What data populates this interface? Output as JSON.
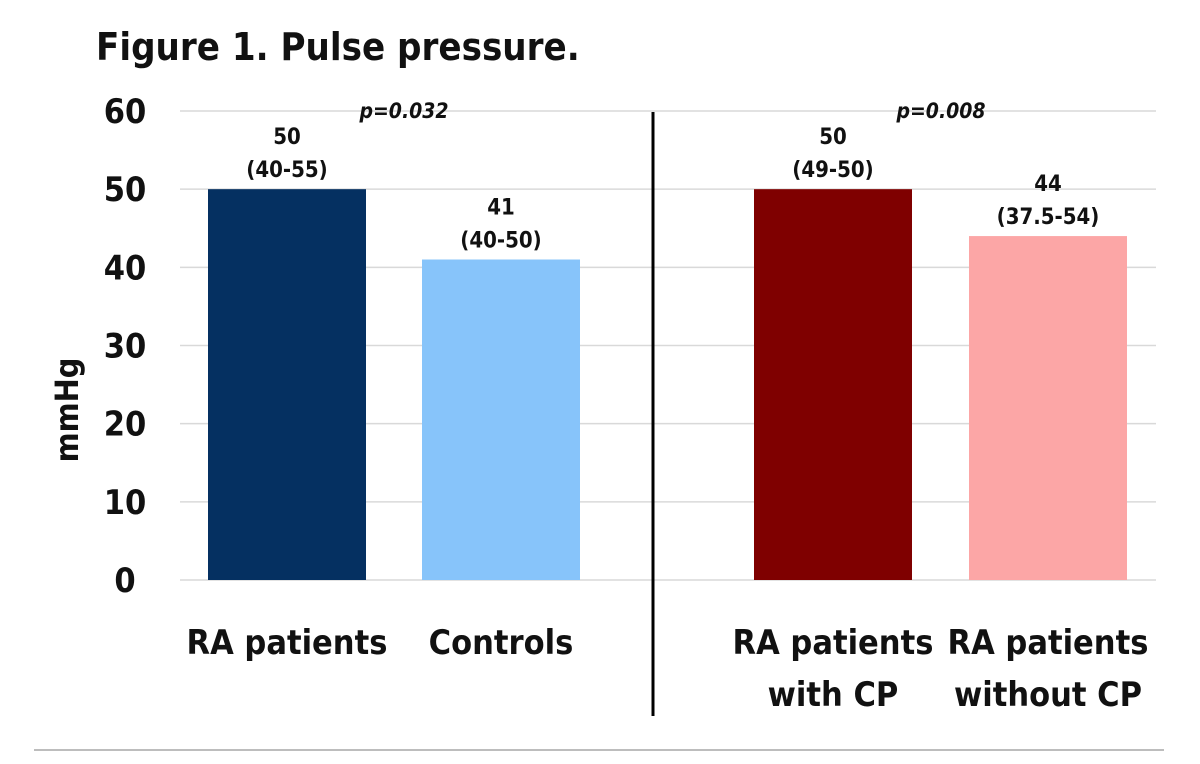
{
  "chart_data": {
    "type": "bar",
    "title": "Figure 1. Pulse pressure.",
    "ylabel": "mmHg",
    "ylim": [
      0,
      60
    ],
    "yticks": [
      0,
      10,
      20,
      30,
      40,
      50,
      60
    ],
    "grid": true,
    "bars": [
      {
        "category": [
          "RA patients"
        ],
        "value": 50,
        "label_top": "50",
        "label_range": "(40-55)",
        "color": "#053061"
      },
      {
        "category": [
          "Controls"
        ],
        "value": 41,
        "label_top": "41",
        "label_range": "(40-50)",
        "color": "#87c4fa"
      },
      {
        "category": [
          "RA patients",
          "with CP"
        ],
        "value": 50,
        "label_top": "50",
        "label_range": "(49-50)",
        "color": "#7f0000"
      },
      {
        "category": [
          "RA patients",
          "without CP"
        ],
        "value": 44,
        "label_top": "44",
        "label_range": "(37.5-54)",
        "color": "#fca6a6"
      }
    ],
    "annotations": [
      {
        "text": "p=0.032",
        "group": 0
      },
      {
        "text": "p=0.008",
        "group": 1
      }
    ]
  }
}
